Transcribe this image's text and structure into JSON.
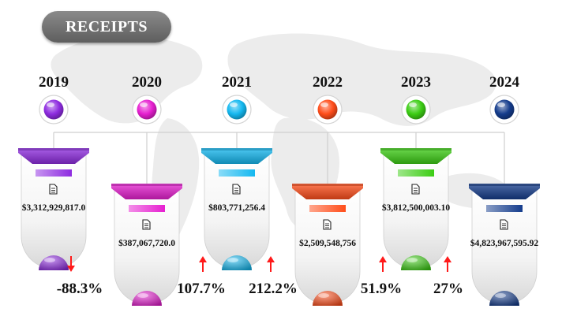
{
  "header": {
    "title": "RECEIPTS"
  },
  "colors": {
    "background": "#ffffff",
    "map": "#ececec",
    "arrow": "#ff1a1a",
    "years": [
      "#8e2be0",
      "#e61fd0",
      "#14b8f0",
      "#ff4d1a",
      "#3ccd14",
      "#143c8c"
    ]
  },
  "icons": {
    "card": "document-icon",
    "change": "arrow-icon"
  },
  "chart_data": {
    "type": "table",
    "title": "RECEIPTS",
    "categories": [
      "2019",
      "2020",
      "2021",
      "2022",
      "2023",
      "2024"
    ],
    "values": [
      3312929817.0,
      387067720.0,
      803771256.4,
      2509548756,
      3812500003.1,
      4823967595.92
    ],
    "value_labels": [
      "$3,312,929,817.0",
      "$387,067,720.0",
      "$803,771,256.4",
      "$2,509,548,756",
      "$3,812,500,003.10",
      "$4,823,967,595.92"
    ],
    "changes": [
      {
        "label": "-88.3%",
        "direction": "down"
      },
      {
        "label": "107.7%",
        "direction": "up"
      },
      {
        "label": "212.2%",
        "direction": "up"
      },
      {
        "label": "51.9%",
        "direction": "up"
      },
      {
        "label": "27%",
        "direction": "up"
      }
    ]
  }
}
